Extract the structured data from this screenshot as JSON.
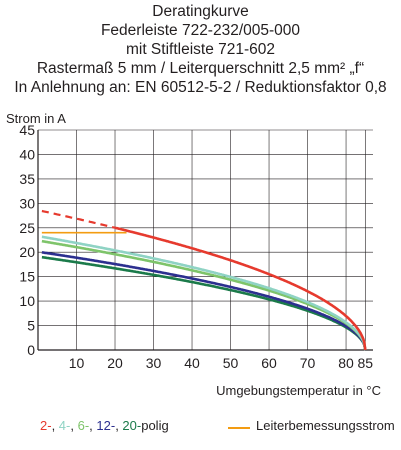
{
  "header": {
    "line1": "Deratingkurve",
    "line2": "Federleiste 722-232/005-000",
    "line3": "mit Stiftleiste 721-602",
    "line4": "Rastermaß 5 mm / Leiterquerschnitt 2,5 mm² „f“",
    "line5": "In Anlehnung an: EN 60512-5-2 / Reduktionsfaktor 0,8"
  },
  "legend": {
    "items": [
      {
        "text": "2-",
        "color": "#e63a2e"
      },
      {
        "text": ", ",
        "color": "#231f20"
      },
      {
        "text": "4-",
        "color": "#8fd3c4"
      },
      {
        "text": ", ",
        "color": "#231f20"
      },
      {
        "text": "6-",
        "color": "#7ec46a"
      },
      {
        "text": ", ",
        "color": "#231f20"
      },
      {
        "text": "12-",
        "color": "#2c2f8f"
      },
      {
        "text": ", ",
        "color": "#231f20"
      },
      {
        "text": "20-",
        "color": "#1b7a4a"
      },
      {
        "text": "polig",
        "color": "#231f20"
      }
    ],
    "rated_current_label": "Leiterbemessungsstrom",
    "rated_current_color": "#f39c12"
  },
  "chart_data": {
    "type": "line",
    "ylabel": "Strom in A",
    "xlabel": "Umgebungstemperatur in °C",
    "xlim": [
      0,
      87
    ],
    "ylim": [
      0,
      45
    ],
    "x_ticks": [
      10,
      20,
      30,
      40,
      50,
      60,
      70,
      80,
      85
    ],
    "y_ticks": [
      5,
      10,
      15,
      20,
      25,
      30,
      35,
      40,
      45
    ],
    "y_tick_labels": [
      "5",
      "10",
      "15",
      "20",
      "25",
      "30",
      "35",
      "40",
      "45"
    ],
    "x_tick_labels": [
      "10",
      "20",
      "30",
      "40",
      "50",
      "60",
      "70",
      "80",
      "85"
    ],
    "zero_label": "0",
    "grid": true,
    "tmax": 85,
    "series": [
      {
        "name": "2-polig",
        "color": "#e63a2e",
        "i0": 28.6,
        "dashed_until": 20,
        "points": [
          [
            20,
            23.5
          ],
          [
            30,
            21.7
          ],
          [
            40,
            19.6
          ],
          [
            50,
            17.3
          ],
          [
            60,
            14.7
          ],
          [
            70,
            11.6
          ],
          [
            80,
            7.0
          ],
          [
            85,
            0
          ]
        ]
      },
      {
        "name": "4-polig",
        "color": "#8fd3c4",
        "i0": 23.3,
        "points": [
          [
            1,
            23.0
          ],
          [
            10,
            21.6
          ],
          [
            20,
            20.0
          ],
          [
            30,
            18.3
          ],
          [
            40,
            16.4
          ],
          [
            50,
            14.4
          ],
          [
            60,
            12.1
          ],
          [
            70,
            9.4
          ],
          [
            80,
            5.6
          ],
          [
            85,
            0
          ]
        ]
      },
      {
        "name": "6-polig",
        "color": "#7ec46a",
        "i0": 22.4,
        "points": [
          [
            1,
            22.1
          ],
          [
            10,
            20.8
          ],
          [
            20,
            19.2
          ],
          [
            30,
            17.6
          ],
          [
            40,
            15.8
          ],
          [
            50,
            13.8
          ],
          [
            60,
            11.6
          ],
          [
            70,
            9.0
          ],
          [
            80,
            5.4
          ],
          [
            85,
            0
          ]
        ]
      },
      {
        "name": "12-polig",
        "color": "#2c2f8f",
        "i0": 20.1,
        "points": [
          [
            1,
            19.9
          ],
          [
            10,
            18.7
          ],
          [
            20,
            17.3
          ],
          [
            30,
            15.8
          ],
          [
            40,
            14.2
          ],
          [
            50,
            12.4
          ],
          [
            60,
            10.4
          ],
          [
            70,
            8.1
          ],
          [
            80,
            4.8
          ],
          [
            85,
            0
          ]
        ]
      },
      {
        "name": "20-polig",
        "color": "#1b7a4a",
        "i0": 19.1,
        "points": [
          [
            1,
            18.9
          ],
          [
            10,
            17.7
          ],
          [
            20,
            16.4
          ],
          [
            30,
            15.0
          ],
          [
            40,
            13.5
          ],
          [
            50,
            11.8
          ],
          [
            60,
            9.9
          ],
          [
            70,
            7.7
          ],
          [
            80,
            4.6
          ],
          [
            85,
            0
          ]
        ]
      }
    ],
    "rated_current": {
      "name": "Leiterbemessungsstrom",
      "color": "#f39c12",
      "value": 24,
      "x_range": [
        1,
        23
      ]
    }
  }
}
